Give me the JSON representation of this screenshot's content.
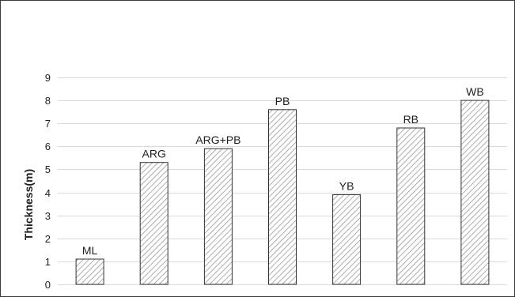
{
  "chart_data": {
    "type": "bar",
    "title": "",
    "xlabel": "",
    "ylabel": "Thickness(m)",
    "ylim": [
      0,
      9
    ],
    "yticks": [
      0,
      1,
      2,
      3,
      4,
      5,
      6,
      7,
      8,
      9
    ],
    "grid": true,
    "legend": "none",
    "categories": [
      "ML",
      "ARG",
      "ARG+PB",
      "PB",
      "YB",
      "RB",
      "WB"
    ],
    "values": [
      1.1,
      5.3,
      5.9,
      7.6,
      3.9,
      6.8,
      8.0
    ],
    "bar_fill": "hatched",
    "colors": {
      "bar_stroke": "#333333",
      "hatch": "#888888",
      "grid": "#d9d9d9",
      "frame": "#3a3a3a"
    }
  }
}
